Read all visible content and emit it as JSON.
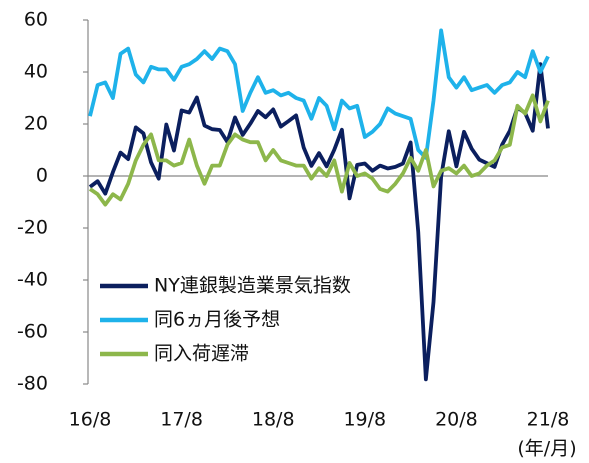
{
  "chart_data": {
    "type": "line",
    "x_unit_label": "(年/月)",
    "categories": [
      "16/8",
      null,
      null,
      null,
      null,
      null,
      null,
      null,
      null,
      null,
      null,
      null,
      "17/8",
      null,
      null,
      null,
      null,
      null,
      null,
      null,
      null,
      null,
      null,
      null,
      "18/8",
      null,
      null,
      null,
      null,
      null,
      null,
      null,
      null,
      null,
      null,
      null,
      "19/8",
      null,
      null,
      null,
      null,
      null,
      null,
      null,
      null,
      null,
      null,
      null,
      "20/8",
      null,
      null,
      null,
      null,
      null,
      null,
      null,
      null,
      null,
      null,
      null,
      "21/8"
    ],
    "series": [
      {
        "name": "NY連銀製造業景気指数",
        "color": "#0b1f5e",
        "values": [
          -4.2,
          -2,
          -6.8,
          1.5,
          9,
          6.5,
          18.7,
          16.4,
          5.2,
          -1,
          19.8,
          9.8,
          25.2,
          24.4,
          30.2,
          19.4,
          18,
          17.7,
          13.1,
          22.5,
          15.8,
          20.1,
          25,
          22.6,
          25.6,
          19,
          21.1,
          23.3,
          10.9,
          3.9,
          8.8,
          3.7,
          10.1,
          17.8,
          -8.6,
          4.3,
          4.8,
          2,
          4,
          2.9,
          3.5,
          4.8,
          12.9,
          -21.5,
          -78.2,
          -48.5,
          -0.2,
          17.2,
          3.7,
          17,
          10.5,
          6.3,
          4.9,
          3.5,
          12.1,
          17.4,
          26.3,
          24.3,
          17.4,
          43,
          18.3
        ]
      },
      {
        "name": "同6ヵ月後予想",
        "color": "#1eb2ea",
        "values": [
          23,
          35,
          36,
          30,
          47,
          49,
          39,
          36,
          42,
          41,
          41,
          37,
          42,
          43,
          45,
          48,
          45,
          49,
          48,
          43,
          25,
          32,
          38,
          32,
          33,
          31,
          32,
          30,
          29,
          22,
          30,
          27,
          18,
          29,
          26,
          27,
          15,
          17,
          20,
          26,
          24,
          23,
          22,
          10,
          7,
          29,
          56,
          38,
          34,
          38,
          33,
          34,
          35,
          32,
          35,
          36,
          40,
          38,
          48,
          40,
          46
        ]
      },
      {
        "name": "同入荷遅滞",
        "color": "#8db74b",
        "values": [
          -5,
          -7,
          -11,
          -7,
          -9,
          -3,
          6,
          12,
          16,
          6,
          6,
          4,
          5,
          14,
          4,
          -3,
          4,
          4,
          12,
          16,
          14,
          13,
          13,
          6,
          10,
          6,
          5,
          4,
          4,
          -1,
          3,
          0,
          6,
          -6,
          5,
          0,
          1,
          -1,
          -5,
          -6,
          -3,
          1,
          7,
          2,
          10,
          -4,
          2,
          3,
          1,
          4,
          0,
          1,
          4,
          6,
          11,
          12,
          27,
          24,
          31,
          21,
          29
        ]
      }
    ],
    "ylim": [
      -80,
      60
    ],
    "yticks": [
      -80,
      -60,
      -40,
      -20,
      0,
      20,
      40,
      60
    ],
    "legend": "lower left"
  }
}
